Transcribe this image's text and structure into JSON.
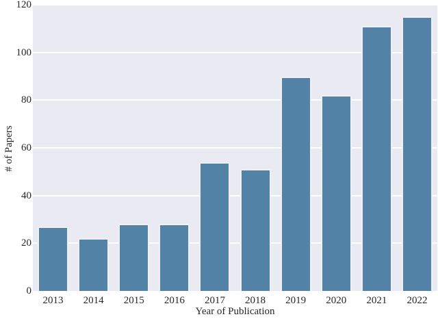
{
  "figure": {
    "background": "#ffffff",
    "plot_background": "#eaeaf2",
    "grid_color": "#ffffff",
    "bar_color": "#5382a7",
    "bar_edge_color": "#eef0f6",
    "text_color": "#262626"
  },
  "chart_data": {
    "type": "bar",
    "categories": [
      "2013",
      "2014",
      "2015",
      "2016",
      "2017",
      "2018",
      "2019",
      "2020",
      "2021",
      "2022"
    ],
    "values": [
      27,
      22,
      28,
      28,
      54,
      51,
      90,
      82,
      111,
      115
    ],
    "title": "",
    "xlabel": "Year of Publication",
    "ylabel": "# of Papers",
    "ylim": [
      0,
      120
    ],
    "yticks": [
      0,
      20,
      40,
      60,
      80,
      100,
      120
    ],
    "grid": true,
    "legend": false
  }
}
